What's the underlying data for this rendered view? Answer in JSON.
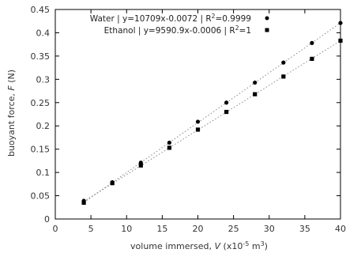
{
  "chart_data": {
    "type": "scatter",
    "xlabel": {
      "prefix": "volume immersed, ",
      "var": "V",
      "unit_pre": " (x10",
      "unit_exp": "-5",
      "unit_mid": " m",
      "unit_exp2": "3",
      "unit_post": ")"
    },
    "ylabel": {
      "prefix": "buoyant force, ",
      "var": "F",
      "unit": " (N)"
    },
    "xlim": [
      0,
      40
    ],
    "ylim": [
      0,
      0.45
    ],
    "xticks": [
      0,
      5,
      10,
      15,
      20,
      25,
      30,
      35,
      40
    ],
    "xtick_labels": [
      "0",
      "5",
      "10",
      "15",
      "20",
      "25",
      "30",
      "35",
      "40"
    ],
    "yticks": [
      0,
      0.05,
      0.1,
      0.15,
      0.2,
      0.25,
      0.3,
      0.35,
      0.4,
      0.45
    ],
    "ytick_labels": [
      "0",
      "0.05",
      "0.1",
      "0.15",
      "0.2",
      "0.25",
      "0.3",
      "0.35",
      "0.4",
      "0.45"
    ],
    "grid": false,
    "legend_position": "top-left",
    "series": [
      {
        "name": "Water",
        "legend_text": "Water | y=10709x-0.0072 | R",
        "legend_exp": "2",
        "legend_suffix": "=0.9999",
        "marker": "circle",
        "color": "#000000",
        "fit": {
          "slope": 0.010709,
          "intercept": -0.0072
        },
        "x": [
          4,
          8,
          12,
          16,
          20,
          24,
          28,
          32,
          36,
          40
        ],
        "y": [
          0.039,
          0.079,
          0.121,
          0.164,
          0.209,
          0.25,
          0.293,
          0.336,
          0.378,
          0.421
        ]
      },
      {
        "name": "Ethanol",
        "legend_text": "Ethanol | y=9590.9x-0.0006 | R",
        "legend_exp": "2",
        "legend_suffix": "=1",
        "marker": "square",
        "color": "#000000",
        "fit": {
          "slope": 0.0095909,
          "intercept": -0.0006
        },
        "x": [
          4,
          8,
          12,
          16,
          20,
          24,
          28,
          32,
          36,
          40
        ],
        "y": [
          0.035,
          0.077,
          0.115,
          0.153,
          0.192,
          0.23,
          0.268,
          0.306,
          0.344,
          0.383
        ]
      }
    ]
  },
  "colors": {
    "axis": "#000000",
    "fit_line": "#888888",
    "text": "#333333"
  }
}
